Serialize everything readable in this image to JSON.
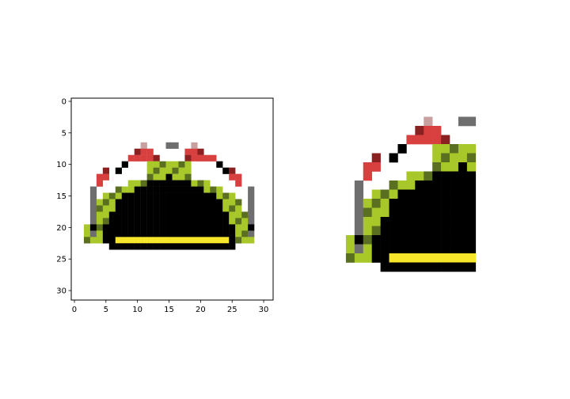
{
  "chart_data": [
    {
      "type": "image",
      "title": "",
      "xlabel": "",
      "ylabel": "",
      "image_size": [
        32,
        32
      ],
      "xlim": [
        -0.5,
        31.5
      ],
      "ylim": [
        31.5,
        -0.5
      ],
      "xticks": [
        0,
        5,
        10,
        15,
        20,
        25,
        30
      ],
      "yticks": [
        0,
        5,
        10,
        15,
        20,
        25,
        30
      ],
      "axes_visible": true,
      "content": "pixel-art taco"
    },
    {
      "type": "image",
      "title": "",
      "axes_visible": false,
      "content": "cropped, enlarged left half of the pixel-art taco"
    }
  ],
  "colors": {
    "yellow": "#f7e62a",
    "yellow_edge": "#c8b22a",
    "lettuce": "#a8c82a",
    "lettuce_dark": "#5a7020",
    "red": "#d84040",
    "red_dark": "#8a2020",
    "pink": "#c8a0a0",
    "black": "#000000",
    "gray": "#6e6e6e"
  }
}
